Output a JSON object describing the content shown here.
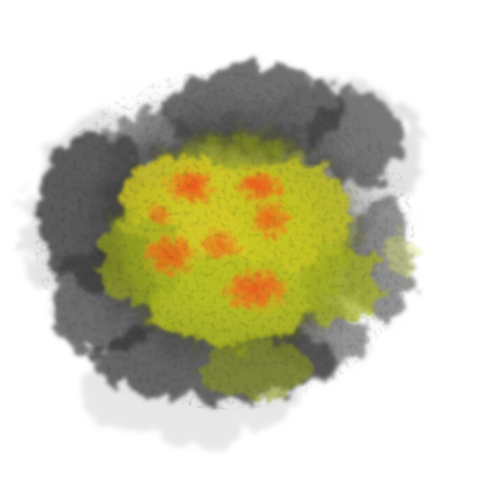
{
  "image": {
    "subject": "smoke-explosion-cloud",
    "colors": {
      "background": "#ffffff",
      "outer_smoke": "#9a9a9a",
      "dark_smoke": "#2f2f2f",
      "haze": "#d8d8d8",
      "yellow_core": "#c8cc2a",
      "green_yellow": "#a3b21e",
      "fire_orange": "#e8621a",
      "fire_hot": "#f4a020"
    }
  }
}
